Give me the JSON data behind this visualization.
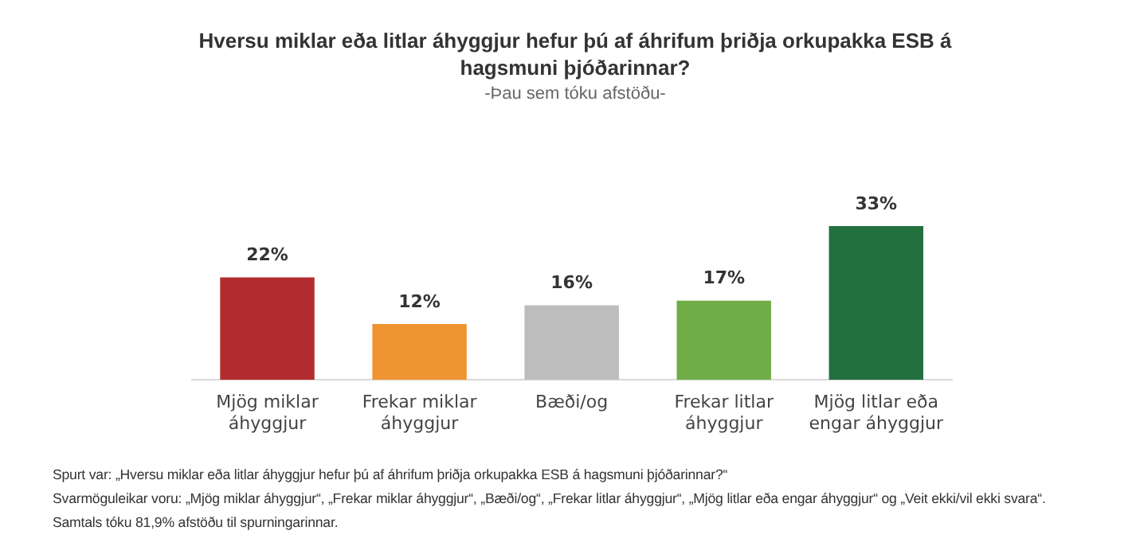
{
  "chart_data": {
    "type": "bar",
    "title": "Hversu miklar eða litlar áhyggjur hefur þú af áhrifum þriðja orkupakka ESB á hagsmuni þjóðarinnar?",
    "subtitle": "-Þau sem tóku afstöðu-",
    "categories": [
      "Mjög miklar áhyggjur",
      "Frekar miklar áhyggjur",
      "Bæði/og",
      "Frekar litlar áhyggjur",
      "Mjög litlar eða engar áhyggjur"
    ],
    "values": [
      22,
      12,
      16,
      17,
      33
    ],
    "value_labels": [
      "22%",
      "12%",
      "16%",
      "17%",
      "33%"
    ],
    "colors": [
      "#b22c2f",
      "#ef9433",
      "#bdbdbd",
      "#70ad47",
      "#23703f"
    ],
    "grid": false,
    "legend": false,
    "annotations": [
      "Spurt var: „Hversu miklar eða litlar áhyggjur hefur þú af áhrifum þriðja orkupakka ESB á hagsmuni þjóðarinnar?“",
      "Svarmöguleikar voru: „Mjög miklar áhyggjur“, „Frekar miklar áhyggjur“, „Bæði/og“, „Frekar litlar áhyggjur“, „Mjög litlar eða engar áhyggjur“ og „Veit ekki/vil ekki svara“.",
      "Samtals tóku 81,9% afstöðu til spurningarinnar."
    ]
  }
}
